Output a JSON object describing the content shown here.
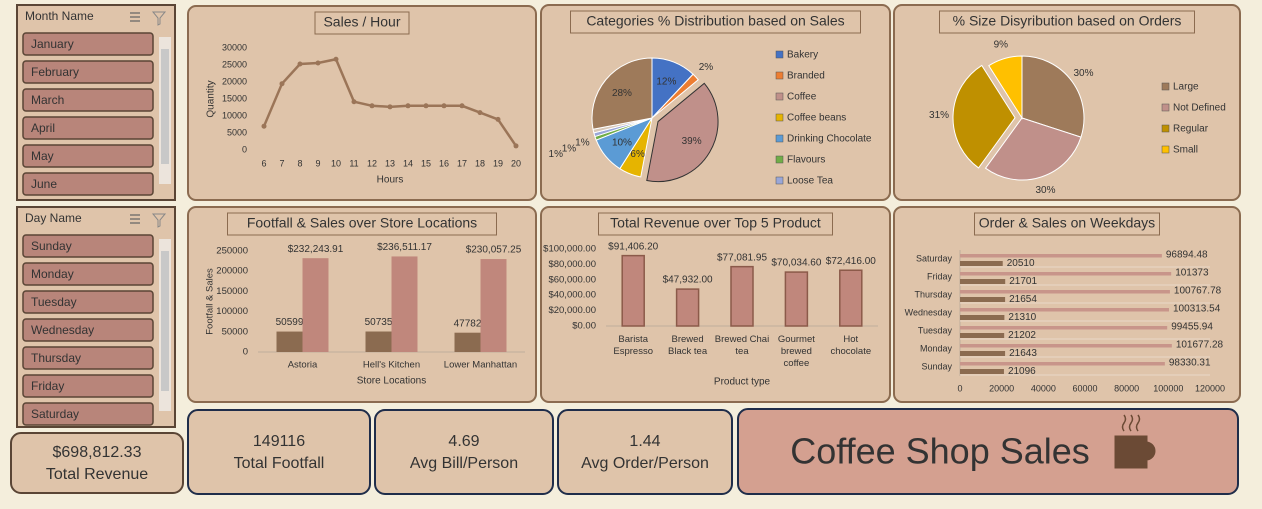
{
  "slicers": [
    {
      "title": "Month Name",
      "items": [
        "January",
        "February",
        "March",
        "April",
        "May",
        "June"
      ]
    },
    {
      "title": "Day Name",
      "items": [
        "Sunday",
        "Monday",
        "Tuesday",
        "Wednesday",
        "Thursday",
        "Friday",
        "Saturday"
      ]
    }
  ],
  "kpis": [
    {
      "value": "$698,812.33",
      "label": "Total Revenue"
    },
    {
      "value": "149116",
      "label": "Total Footfall"
    },
    {
      "value": "4.69",
      "label": "Avg Bill/Person"
    },
    {
      "value": "1.44",
      "label": "Avg Order/Person"
    }
  ],
  "banner": "Coffee Shop Sales",
  "chart_data": [
    {
      "type": "line",
      "title": "Sales / Hour",
      "xlabel": "Hours",
      "ylabel": "Quantity",
      "color": "#9b7558",
      "x": [
        6,
        7,
        8,
        9,
        10,
        11,
        12,
        13,
        14,
        15,
        16,
        17,
        18,
        19,
        20
      ],
      "values": [
        7000,
        19500,
        25300,
        25600,
        26700,
        14200,
        13000,
        12700,
        13000,
        13000,
        13000,
        13000,
        11000,
        9000,
        1200
      ],
      "xlim": [
        5.5,
        20.5
      ],
      "xticks": [
        6,
        7,
        8,
        9,
        10,
        11,
        12,
        13,
        14,
        15,
        16,
        17,
        18,
        19,
        20
      ],
      "ylim": [
        0,
        30000
      ],
      "yticks": [
        0,
        5000,
        10000,
        15000,
        20000,
        25000,
        30000
      ]
    },
    {
      "type": "pie",
      "title": "Categories % Distribution based on Sales",
      "categories": [
        "Bakery",
        "Branded",
        "Coffee",
        "Coffee beans",
        "Drinking Chocolate",
        "Flavours",
        "Loose Tea",
        null,
        null
      ],
      "values": [
        12,
        2,
        39,
        6,
        10,
        1,
        1,
        1,
        28
      ],
      "value_labels": [
        "12%",
        "2%",
        "39%",
        "6%",
        "10%",
        "1%",
        "1%",
        "1%",
        "28%"
      ],
      "colors": [
        "#4472c4",
        "#ed7d31",
        "#c0908a",
        "#e6b400",
        "#5b9bd5",
        "#70ad47",
        "#9aa7d8",
        "#d8c8b8",
        "#9e7a5a"
      ]
    },
    {
      "type": "pie",
      "title": "% Size Disyribution based on Orders",
      "categories": [
        "Large",
        "Not Defined",
        "Regular",
        "Small"
      ],
      "values": [
        30,
        30,
        31,
        9
      ],
      "value_labels": [
        "30%",
        "30%",
        "31%",
        "9%"
      ],
      "colors": [
        "#9e7a5a",
        "#c0908a",
        "#bf9000",
        "#ffc000"
      ]
    },
    {
      "type": "bar",
      "title": "Footfall & Sales over Store Locations",
      "xlabel": "Store Locations",
      "ylabel": "Footfall & Sales",
      "categories": [
        "Astoria",
        "Hell's Kitchen",
        "Lower Manhattan"
      ],
      "series": [
        {
          "color": "#8b6b50",
          "values": [
            50599,
            50735,
            47782
          ]
        },
        {
          "color": "#c0877c",
          "values": [
            232243.91,
            236511.17,
            230057.25
          ],
          "value_labels": [
            "$232,243.91",
            "$236,511.17",
            "$230,057.25"
          ]
        }
      ],
      "ylim": [
        0,
        250000
      ],
      "yticks": [
        0,
        50000,
        100000,
        150000,
        200000,
        250000
      ]
    },
    {
      "type": "bar",
      "title": "Total Revenue over Top 5 Product",
      "xlabel": "Product type",
      "categories": [
        "Barista Espresso",
        "Brewed Black tea",
        "Brewed Chai tea",
        "Gourmet brewed coffee",
        "Hot chocolate"
      ],
      "series": [
        {
          "color": "#c0877c",
          "values": [
            91406.2,
            47932,
            77081.95,
            70034.6,
            72416
          ],
          "value_labels": [
            "$91,406.20",
            "$47,932.00",
            "$77,081.95",
            "$70,034.60",
            "$72,416.00"
          ]
        }
      ],
      "ylim": [
        0,
        100000
      ],
      "yticks": [
        {
          "value": 0,
          "label": "$0.00"
        },
        {
          "value": 20000,
          "label": "$20,000.00"
        },
        {
          "value": 40000,
          "label": "$40,000.00"
        },
        {
          "value": 60000,
          "label": "$60,000.00"
        },
        {
          "value": 80000,
          "label": "$80,000.00"
        },
        {
          "value": 100000,
          "label": "$100,000.00"
        }
      ]
    },
    {
      "type": "hbar",
      "title": "Order & Sales on Weekdays",
      "categories": [
        "Saturday",
        "Friday",
        "Thursday",
        "Wednesday",
        "Tuesday",
        "Monday",
        "Sunday"
      ],
      "series": [
        {
          "color": "#8b6b50",
          "values": [
            20510,
            21701,
            21654,
            21310,
            21202,
            21643,
            21096
          ]
        },
        {
          "color": "#c8958a",
          "values": [
            96894.48,
            101373,
            100767.78,
            100313.54,
            99455.94,
            101677.28,
            98330.31
          ]
        }
      ],
      "xlim": [
        0,
        120000
      ],
      "xticks": [
        0,
        20000,
        40000,
        60000,
        80000,
        100000,
        120000
      ]
    }
  ]
}
